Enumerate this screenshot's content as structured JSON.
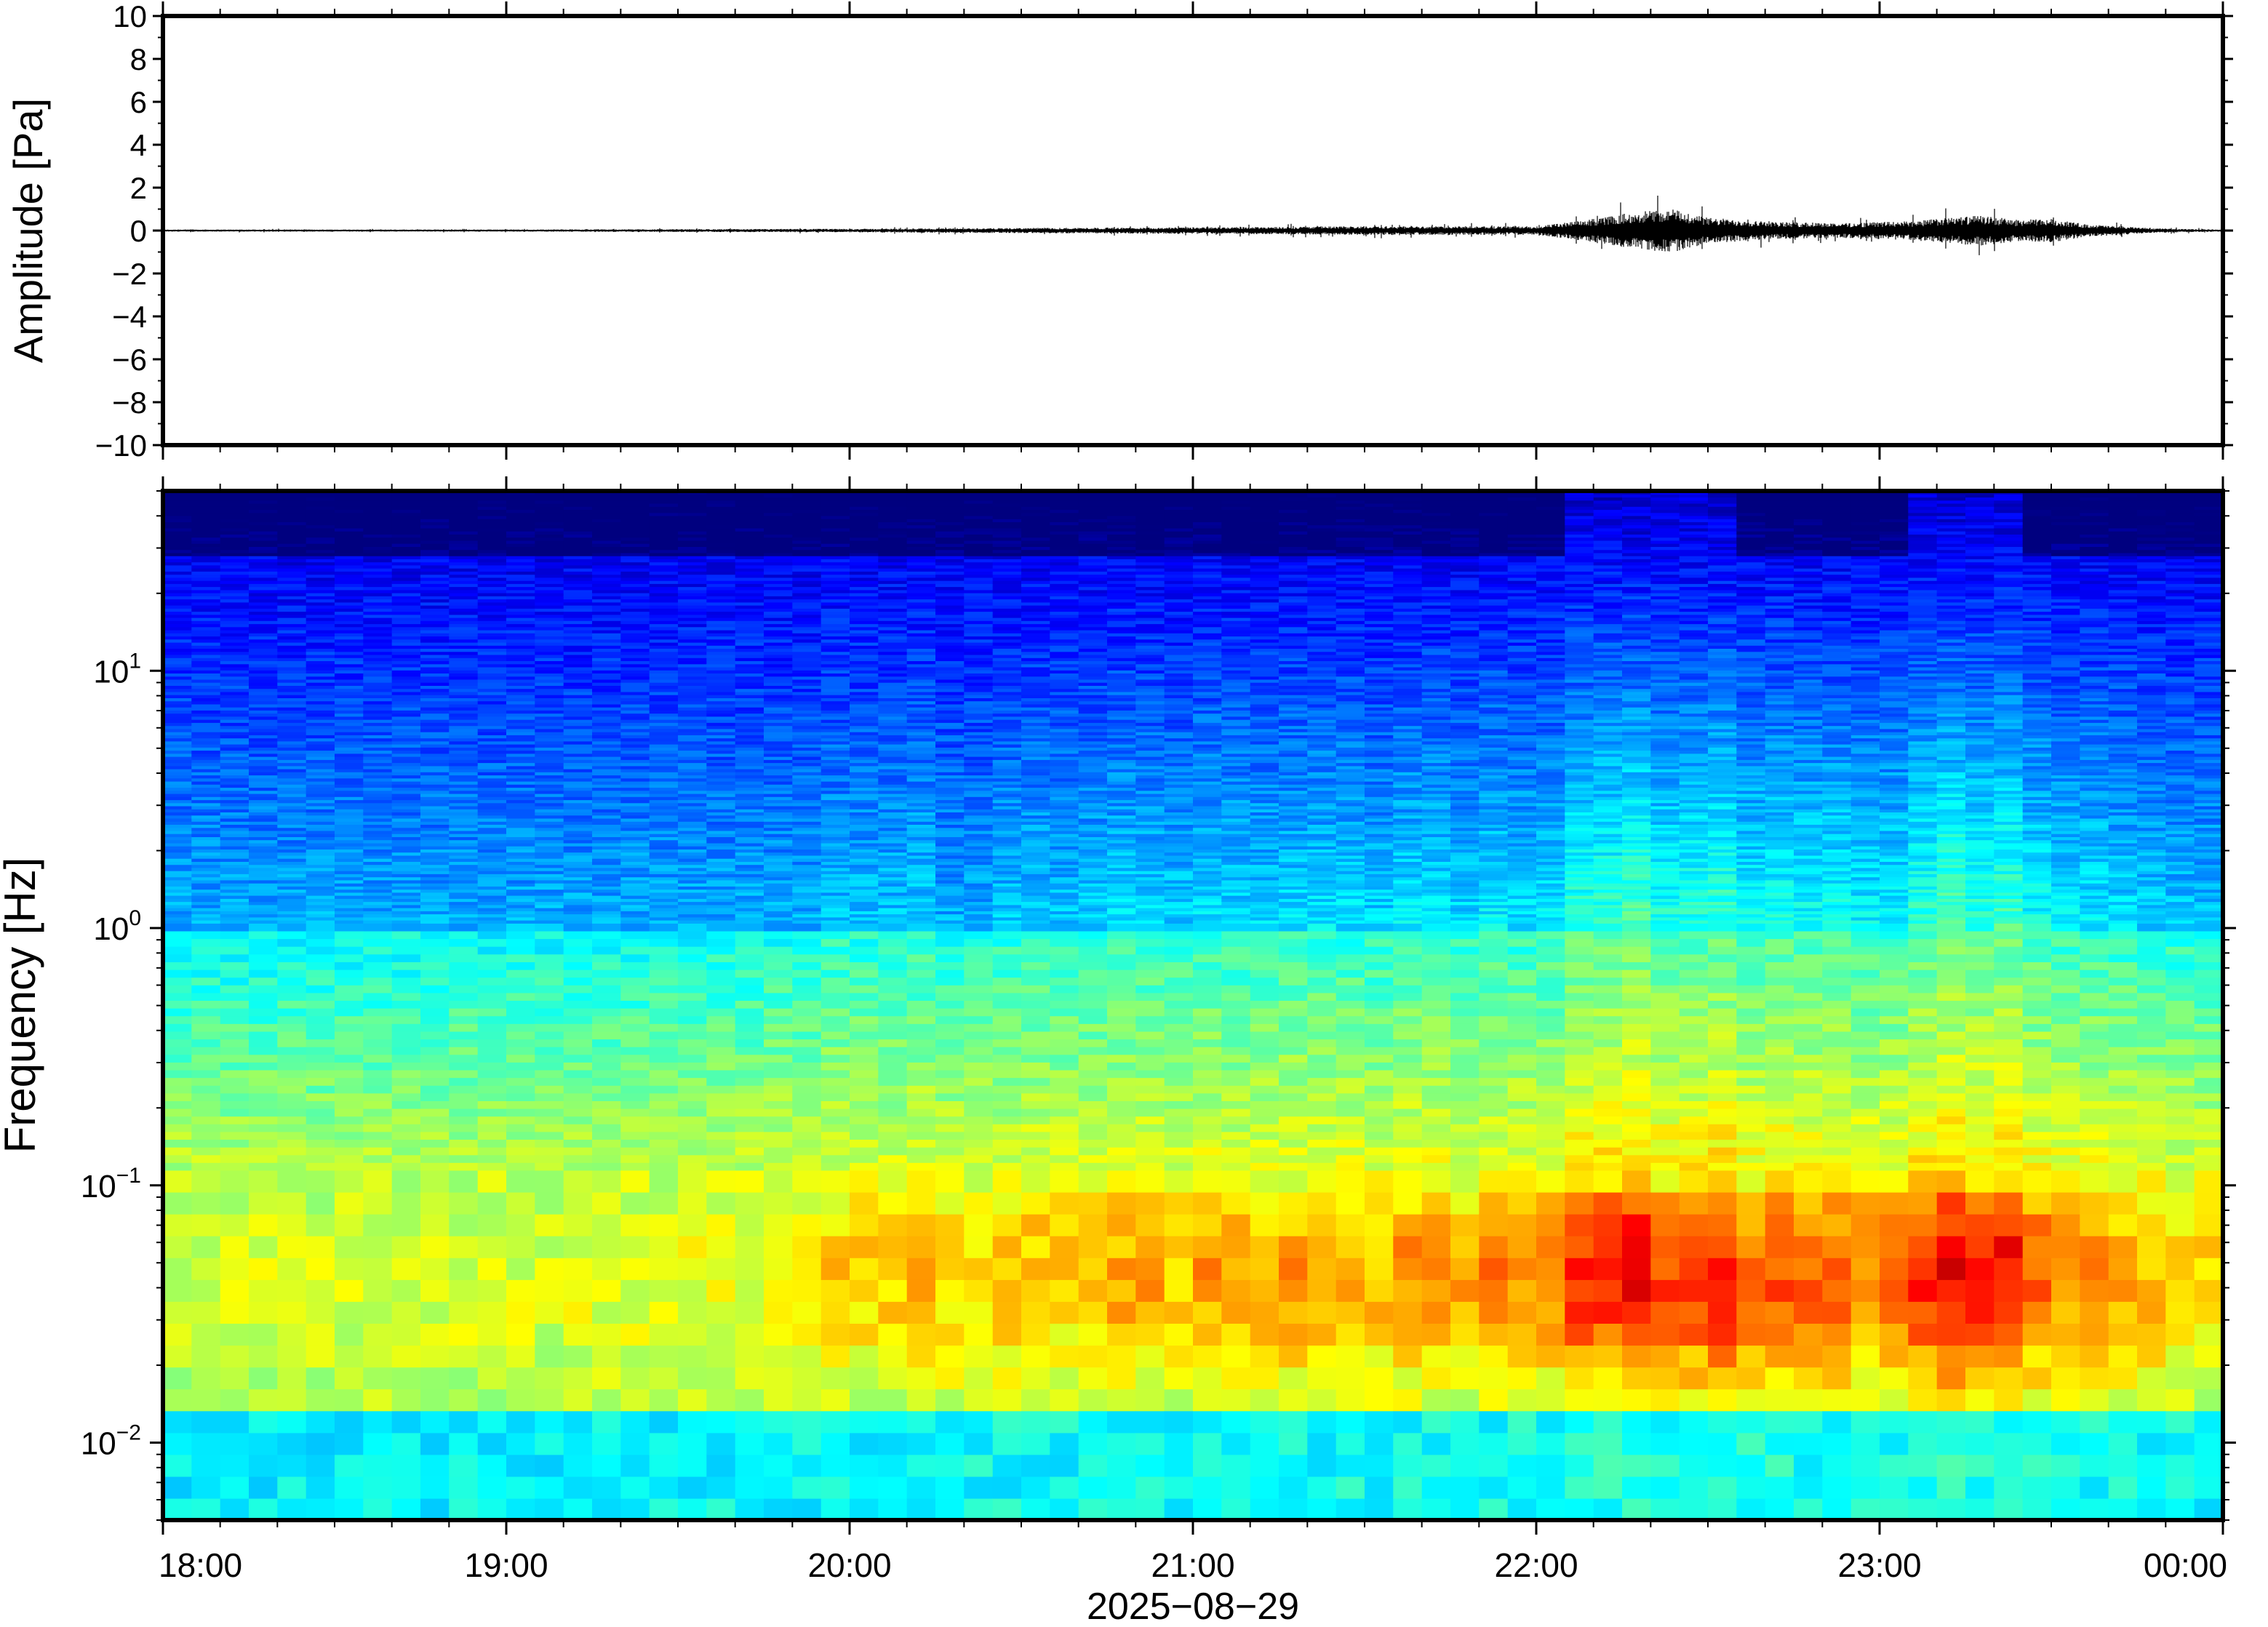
{
  "chart_data": [
    {
      "type": "line",
      "panel": "waveform",
      "ylabel": "Amplitude [Pa]",
      "ylim": [
        -10,
        10
      ],
      "yticks": [
        10,
        8,
        6,
        4,
        2,
        0,
        -2,
        -4,
        -6,
        -8,
        -10
      ],
      "ytick_labels": [
        "10",
        "8",
        "6",
        "4",
        "2",
        "0",
        "−2",
        "−4",
        "−6",
        "−8",
        "−10"
      ],
      "xlim": [
        "18:00",
        "24:00"
      ],
      "line_color": "#000000",
      "envelope": {
        "x_hours": [
          18.0,
          19.0,
          20.0,
          20.5,
          21.0,
          21.5,
          22.0,
          22.15,
          22.3,
          22.4,
          22.5,
          22.7,
          22.9,
          23.1,
          23.2,
          23.3,
          23.4,
          23.5,
          23.6,
          23.8,
          24.0
        ],
        "amplitude": [
          0.05,
          0.05,
          0.08,
          0.12,
          0.15,
          0.2,
          0.2,
          0.5,
          0.9,
          1.0,
          0.6,
          0.4,
          0.35,
          0.45,
          0.6,
          0.7,
          0.5,
          0.55,
          0.3,
          0.1,
          0.05
        ]
      }
    },
    {
      "type": "heatmap",
      "panel": "spectrogram",
      "ylabel": "Frequency [Hz]",
      "yscale": "log",
      "ylim": [
        0.005,
        50
      ],
      "yticks": [
        {
          "value": 0.01,
          "base": "10",
          "exp": "−2"
        },
        {
          "value": 0.1,
          "base": "10",
          "exp": "−1"
        },
        {
          "value": 1,
          "base": "10",
          "exp": "0"
        },
        {
          "value": 10,
          "base": "10",
          "exp": "1"
        }
      ],
      "xlim_hours": [
        18,
        24
      ],
      "xticks": [
        "18:00",
        "19:00",
        "20:00",
        "21:00",
        "22:00",
        "23:00",
        "00:00"
      ],
      "xlabel": "2025−08−29",
      "colormap": [
        "#00007f",
        "#0000ff",
        "#007fff",
        "#00ffff",
        "#7fff7f",
        "#ffff00",
        "#ff7f00",
        "#ff0000",
        "#7f0000"
      ],
      "activity": {
        "x_hours": [
          18.0,
          18.5,
          19.0,
          19.5,
          19.8,
          20.0,
          20.5,
          21.0,
          21.5,
          22.0,
          22.2,
          22.3,
          22.5,
          22.8,
          23.0,
          23.2,
          23.4,
          23.6,
          23.8,
          24.0
        ],
        "level": [
          0.15,
          0.15,
          0.18,
          0.2,
          0.3,
          0.4,
          0.45,
          0.5,
          0.5,
          0.55,
          0.9,
          1.0,
          0.85,
          0.65,
          0.7,
          0.95,
          0.85,
          0.6,
          0.45,
          0.35
        ]
      }
    }
  ]
}
